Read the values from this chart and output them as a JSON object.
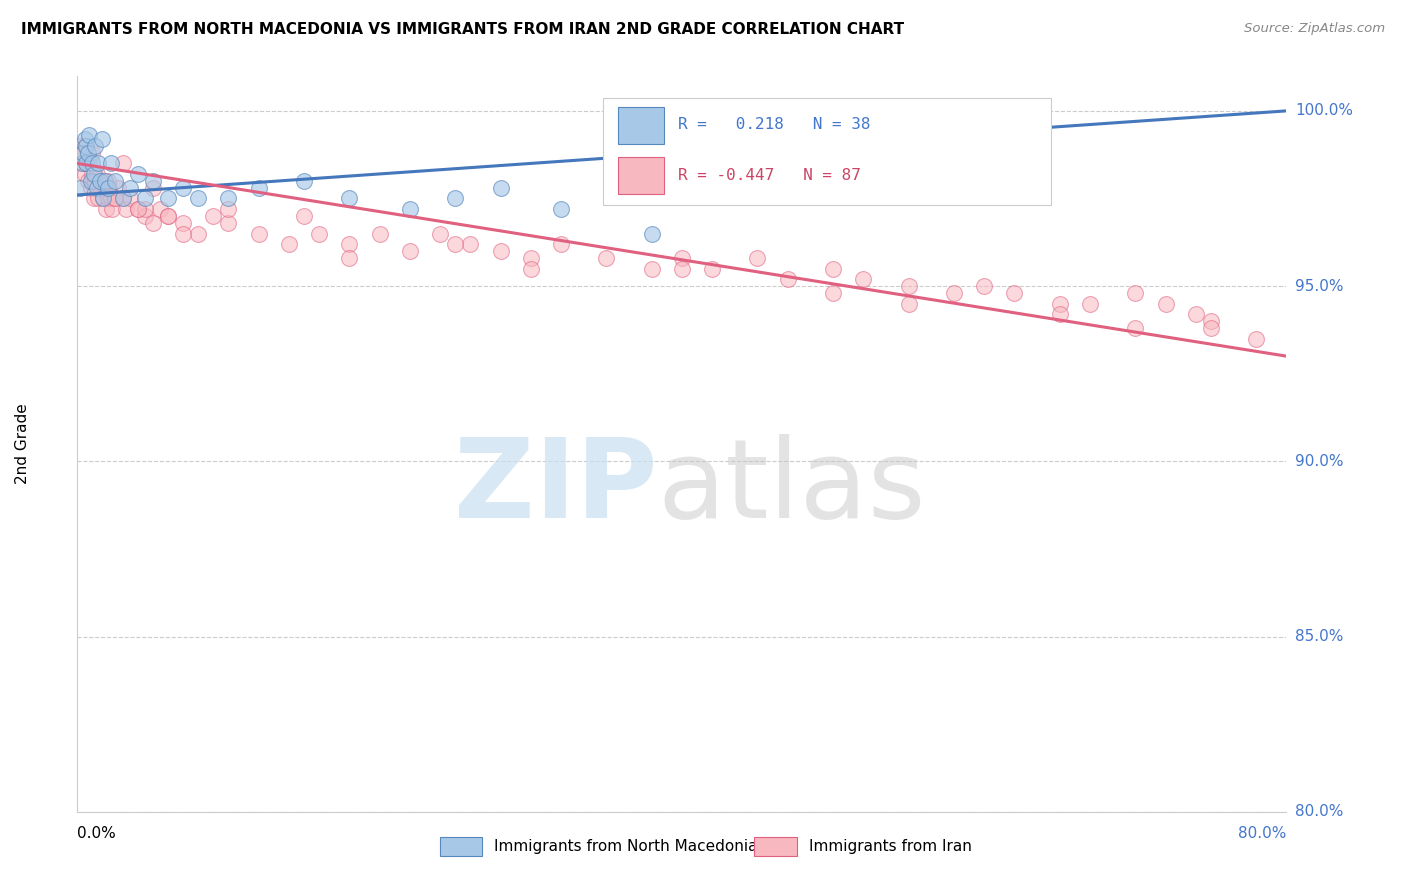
{
  "title": "IMMIGRANTS FROM NORTH MACEDONIA VS IMMIGRANTS FROM IRAN 2ND GRADE CORRELATION CHART",
  "source": "Source: ZipAtlas.com",
  "ylabel": "2nd Grade",
  "yticks": [
    80.0,
    85.0,
    90.0,
    95.0,
    100.0
  ],
  "ytick_labels": [
    "80.0%",
    "85.0%",
    "90.0%",
    "95.0%",
    "100.0%"
  ],
  "xmin": 0.0,
  "xmax": 80.0,
  "ymin": 80.0,
  "ymax": 101.0,
  "blue_fill": "#a8c8e8",
  "blue_edge": "#5588bb",
  "pink_fill": "#f8b8c0",
  "pink_edge": "#e06080",
  "blue_line_color": "#4477bb",
  "pink_line_color": "#e06080",
  "R_blue": 0.218,
  "N_blue": 38,
  "R_pink": -0.447,
  "N_pink": 87,
  "legend_label_blue": "Immigrants from North Macedonia",
  "legend_label_pink": "Immigrants from Iran",
  "blue_trend_x0": 0.0,
  "blue_trend_y0": 97.6,
  "blue_trend_x1": 80.0,
  "blue_trend_y1": 100.0,
  "pink_trend_x0": 0.0,
  "pink_trend_y0": 98.5,
  "pink_trend_x1": 80.0,
  "pink_trend_y1": 93.0,
  "blue_scatter_x": [
    0.2,
    0.3,
    0.4,
    0.5,
    0.6,
    0.6,
    0.7,
    0.8,
    0.9,
    1.0,
    1.1,
    1.2,
    1.3,
    1.4,
    1.5,
    1.6,
    1.7,
    1.8,
    2.0,
    2.2,
    2.5,
    3.0,
    3.5,
    4.0,
    4.5,
    5.0,
    6.0,
    7.0,
    8.0,
    10.0,
    12.0,
    15.0,
    18.0,
    22.0,
    25.0,
    28.0,
    32.0,
    38.0
  ],
  "blue_scatter_y": [
    97.8,
    98.5,
    98.8,
    99.2,
    98.5,
    99.0,
    98.8,
    99.3,
    98.0,
    98.5,
    98.2,
    99.0,
    97.8,
    98.5,
    98.0,
    99.2,
    97.5,
    98.0,
    97.8,
    98.5,
    98.0,
    97.5,
    97.8,
    98.2,
    97.5,
    98.0,
    97.5,
    97.8,
    97.5,
    97.5,
    97.8,
    98.0,
    97.5,
    97.2,
    97.5,
    97.8,
    97.2,
    96.5
  ],
  "pink_scatter_x": [
    0.2,
    0.3,
    0.4,
    0.5,
    0.5,
    0.6,
    0.7,
    0.8,
    0.9,
    1.0,
    1.0,
    1.1,
    1.2,
    1.3,
    1.4,
    1.5,
    1.6,
    1.7,
    1.8,
    1.9,
    2.0,
    2.1,
    2.2,
    2.3,
    2.5,
    2.7,
    3.0,
    3.2,
    3.5,
    4.0,
    4.5,
    5.0,
    5.5,
    6.0,
    7.0,
    8.0,
    9.0,
    10.0,
    12.0,
    14.0,
    16.0,
    18.0,
    20.0,
    22.0,
    24.0,
    26.0,
    28.0,
    30.0,
    32.0,
    35.0,
    38.0,
    40.0,
    42.0,
    45.0,
    47.0,
    50.0,
    52.0,
    55.0,
    58.0,
    60.0,
    62.0,
    65.0,
    67.0,
    70.0,
    72.0,
    74.0,
    75.0,
    78.0,
    4.5,
    7.0,
    18.0,
    30.0,
    50.0,
    65.0,
    75.0,
    2.0,
    3.0,
    5.0,
    10.0,
    15.0,
    25.0,
    40.0,
    55.0,
    70.0,
    2.5,
    4.0,
    6.0
  ],
  "pink_scatter_y": [
    99.0,
    98.5,
    98.8,
    98.2,
    99.0,
    98.5,
    98.0,
    98.5,
    97.8,
    98.2,
    98.8,
    97.5,
    98.0,
    98.2,
    97.5,
    97.8,
    98.0,
    97.5,
    97.8,
    97.2,
    97.5,
    97.8,
    97.5,
    97.2,
    97.5,
    97.8,
    97.5,
    97.2,
    97.5,
    97.2,
    97.0,
    96.8,
    97.2,
    97.0,
    96.8,
    96.5,
    97.0,
    96.8,
    96.5,
    96.2,
    96.5,
    96.2,
    96.5,
    96.0,
    96.5,
    96.2,
    96.0,
    95.8,
    96.2,
    95.8,
    95.5,
    95.8,
    95.5,
    95.8,
    95.2,
    95.5,
    95.2,
    95.0,
    94.8,
    95.0,
    94.8,
    94.5,
    94.5,
    94.8,
    94.5,
    94.2,
    94.0,
    93.5,
    97.2,
    96.5,
    95.8,
    95.5,
    94.8,
    94.2,
    93.8,
    98.0,
    98.5,
    97.8,
    97.2,
    97.0,
    96.2,
    95.5,
    94.5,
    93.8,
    97.5,
    97.2,
    97.0
  ]
}
